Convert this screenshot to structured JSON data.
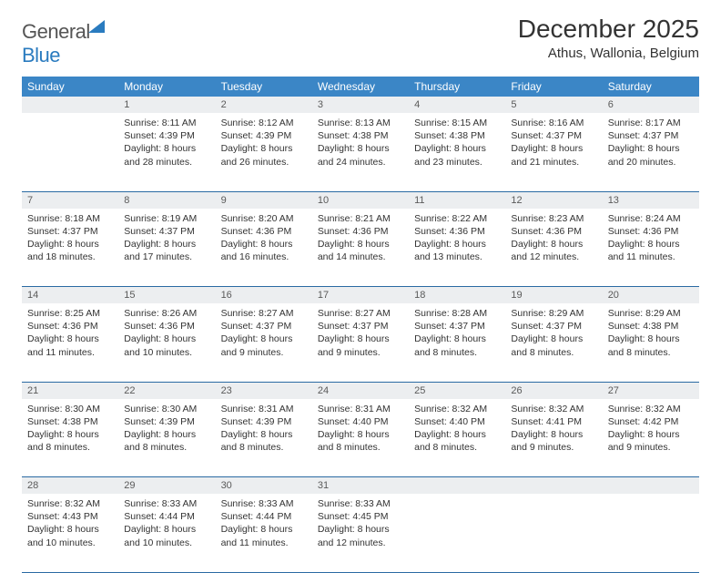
{
  "logo": {
    "part1": "General",
    "part2": "Blue"
  },
  "title": "December 2025",
  "location": "Athus, Wallonia, Belgium",
  "colors": {
    "header_bg": "#3b86c6",
    "header_text": "#ffffff",
    "daynum_bg": "#eceef0",
    "row_border": "#2a6aa3",
    "logo_blue": "#2a7bbf"
  },
  "weekdays": [
    "Sunday",
    "Monday",
    "Tuesday",
    "Wednesday",
    "Thursday",
    "Friday",
    "Saturday"
  ],
  "weeks": [
    {
      "nums": [
        "",
        "1",
        "2",
        "3",
        "4",
        "5",
        "6"
      ],
      "cells": [
        null,
        {
          "sunrise": "8:11 AM",
          "sunset": "4:39 PM",
          "daylight": "8 hours and 28 minutes."
        },
        {
          "sunrise": "8:12 AM",
          "sunset": "4:39 PM",
          "daylight": "8 hours and 26 minutes."
        },
        {
          "sunrise": "8:13 AM",
          "sunset": "4:38 PM",
          "daylight": "8 hours and 24 minutes."
        },
        {
          "sunrise": "8:15 AM",
          "sunset": "4:38 PM",
          "daylight": "8 hours and 23 minutes."
        },
        {
          "sunrise": "8:16 AM",
          "sunset": "4:37 PM",
          "daylight": "8 hours and 21 minutes."
        },
        {
          "sunrise": "8:17 AM",
          "sunset": "4:37 PM",
          "daylight": "8 hours and 20 minutes."
        }
      ]
    },
    {
      "nums": [
        "7",
        "8",
        "9",
        "10",
        "11",
        "12",
        "13"
      ],
      "cells": [
        {
          "sunrise": "8:18 AM",
          "sunset": "4:37 PM",
          "daylight": "8 hours and 18 minutes."
        },
        {
          "sunrise": "8:19 AM",
          "sunset": "4:37 PM",
          "daylight": "8 hours and 17 minutes."
        },
        {
          "sunrise": "8:20 AM",
          "sunset": "4:36 PM",
          "daylight": "8 hours and 16 minutes."
        },
        {
          "sunrise": "8:21 AM",
          "sunset": "4:36 PM",
          "daylight": "8 hours and 14 minutes."
        },
        {
          "sunrise": "8:22 AM",
          "sunset": "4:36 PM",
          "daylight": "8 hours and 13 minutes."
        },
        {
          "sunrise": "8:23 AM",
          "sunset": "4:36 PM",
          "daylight": "8 hours and 12 minutes."
        },
        {
          "sunrise": "8:24 AM",
          "sunset": "4:36 PM",
          "daylight": "8 hours and 11 minutes."
        }
      ]
    },
    {
      "nums": [
        "14",
        "15",
        "16",
        "17",
        "18",
        "19",
        "20"
      ],
      "cells": [
        {
          "sunrise": "8:25 AM",
          "sunset": "4:36 PM",
          "daylight": "8 hours and 11 minutes."
        },
        {
          "sunrise": "8:26 AM",
          "sunset": "4:36 PM",
          "daylight": "8 hours and 10 minutes."
        },
        {
          "sunrise": "8:27 AM",
          "sunset": "4:37 PM",
          "daylight": "8 hours and 9 minutes."
        },
        {
          "sunrise": "8:27 AM",
          "sunset": "4:37 PM",
          "daylight": "8 hours and 9 minutes."
        },
        {
          "sunrise": "8:28 AM",
          "sunset": "4:37 PM",
          "daylight": "8 hours and 8 minutes."
        },
        {
          "sunrise": "8:29 AM",
          "sunset": "4:37 PM",
          "daylight": "8 hours and 8 minutes."
        },
        {
          "sunrise": "8:29 AM",
          "sunset": "4:38 PM",
          "daylight": "8 hours and 8 minutes."
        }
      ]
    },
    {
      "nums": [
        "21",
        "22",
        "23",
        "24",
        "25",
        "26",
        "27"
      ],
      "cells": [
        {
          "sunrise": "8:30 AM",
          "sunset": "4:38 PM",
          "daylight": "8 hours and 8 minutes."
        },
        {
          "sunrise": "8:30 AM",
          "sunset": "4:39 PM",
          "daylight": "8 hours and 8 minutes."
        },
        {
          "sunrise": "8:31 AM",
          "sunset": "4:39 PM",
          "daylight": "8 hours and 8 minutes."
        },
        {
          "sunrise": "8:31 AM",
          "sunset": "4:40 PM",
          "daylight": "8 hours and 8 minutes."
        },
        {
          "sunrise": "8:32 AM",
          "sunset": "4:40 PM",
          "daylight": "8 hours and 8 minutes."
        },
        {
          "sunrise": "8:32 AM",
          "sunset": "4:41 PM",
          "daylight": "8 hours and 9 minutes."
        },
        {
          "sunrise": "8:32 AM",
          "sunset": "4:42 PM",
          "daylight": "8 hours and 9 minutes."
        }
      ]
    },
    {
      "nums": [
        "28",
        "29",
        "30",
        "31",
        "",
        "",
        ""
      ],
      "cells": [
        {
          "sunrise": "8:32 AM",
          "sunset": "4:43 PM",
          "daylight": "8 hours and 10 minutes."
        },
        {
          "sunrise": "8:33 AM",
          "sunset": "4:44 PM",
          "daylight": "8 hours and 10 minutes."
        },
        {
          "sunrise": "8:33 AM",
          "sunset": "4:44 PM",
          "daylight": "8 hours and 11 minutes."
        },
        {
          "sunrise": "8:33 AM",
          "sunset": "4:45 PM",
          "daylight": "8 hours and 12 minutes."
        },
        null,
        null,
        null
      ]
    }
  ],
  "labels": {
    "sunrise": "Sunrise:",
    "sunset": "Sunset:",
    "daylight": "Daylight:"
  }
}
